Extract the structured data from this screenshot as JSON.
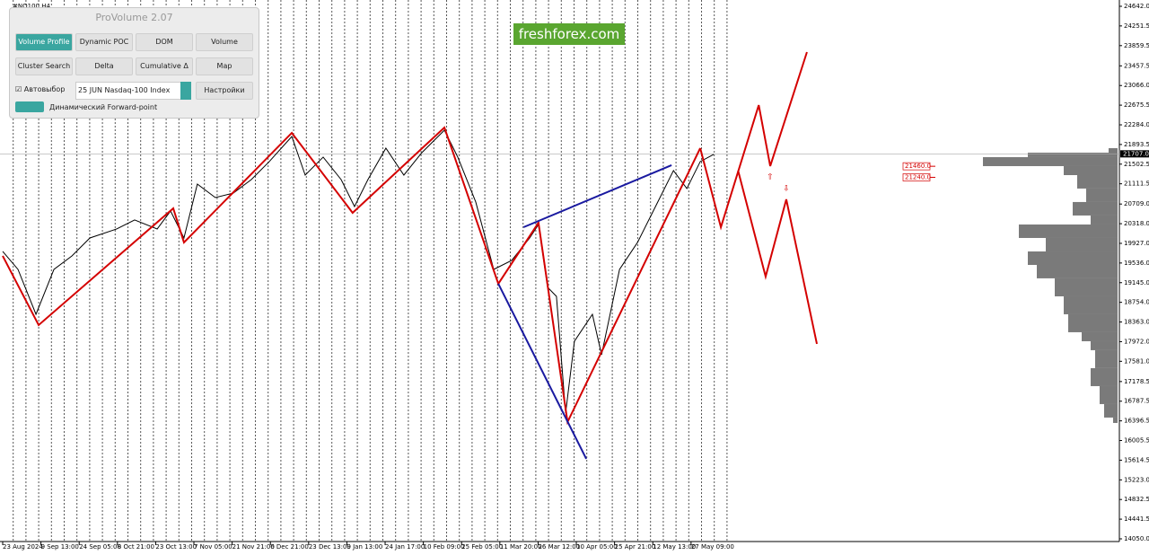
{
  "window": {
    "symbol": "#NQ100,H4"
  },
  "panel": {
    "title": "ProVolume 2.07",
    "buttons": [
      "Volume Profile",
      "Dynamic POC",
      "DOM",
      "Volume",
      "Cluster Search",
      "Delta",
      "Cumulative Δ",
      "Map"
    ],
    "auto_select": "Автовыбор",
    "instrument": "25 JUN Nasdaq-100 Index",
    "settings": "Настройки",
    "forward_point": "Динамический Forward-point"
  },
  "watermark": "freshforex.com",
  "chart_data": {
    "type": "line",
    "xlim": [
      0,
      29.2
    ],
    "xticks": [
      {
        "value": 0,
        "label": "23 Aug 2024"
      },
      {
        "value": 1,
        "label": "9 Sep 13:00"
      },
      {
        "value": 2,
        "label": "24 Sep 05:00"
      },
      {
        "value": 3,
        "label": "8 Oct 21:00"
      },
      {
        "value": 4,
        "label": "23 Oct 13:00"
      },
      {
        "value": 5,
        "label": "7 Nov 05:00"
      },
      {
        "value": 6,
        "label": "21 Nov 21:00"
      },
      {
        "value": 7,
        "label": "6 Dec 21:00"
      },
      {
        "value": 8,
        "label": "23 Dec 13:00"
      },
      {
        "value": 9,
        "label": "9 Jan 13:00"
      },
      {
        "value": 10,
        "label": "24 Jan 17:00"
      },
      {
        "value": 11,
        "label": "10 Feb 09:00"
      },
      {
        "value": 12,
        "label": "25 Feb 05:00"
      },
      {
        "value": 13,
        "label": "11 Mar 20:00"
      },
      {
        "value": 14,
        "label": "26 Mar 12:00"
      },
      {
        "value": 15,
        "label": "10 Apr 05:00"
      },
      {
        "value": 16,
        "label": "25 Apr 21:00"
      },
      {
        "value": 17,
        "label": "12 May 13:00"
      },
      {
        "value": 18,
        "label": "27 May 09:00"
      }
    ],
    "ylim": [
      14050,
      24642
    ],
    "yticks": [
      {
        "value": 24642,
        "label": "24642.0"
      },
      24251.5,
      23859.5,
      23457.5,
      {
        "value": 23066,
        "label": "23066.0"
      },
      22675.5,
      {
        "value": 22284,
        "label": "22284.0"
      },
      21893.5,
      21502.5,
      21111.5,
      {
        "value": 20709,
        "label": "20709.0"
      },
      {
        "value": 20318,
        "label": "20318.0"
      },
      {
        "value": 19927,
        "label": "19927.0"
      },
      {
        "value": 19536,
        "label": "19536.0"
      },
      {
        "value": 19145,
        "label": "19145.0"
      },
      {
        "value": 18754,
        "label": "18754.0"
      },
      {
        "value": 18363,
        "label": "18363.0"
      },
      {
        "value": 17972,
        "label": "17972.0"
      },
      {
        "value": 17581,
        "label": "17581.0"
      },
      17178.5,
      16787.5,
      16396.5,
      16005.5,
      15614.5,
      {
        "value": 15223,
        "label": "15223.0"
      },
      14832.5,
      14441.5,
      {
        "value": 14050,
        "label": "14050.0"
      }
    ],
    "series": [
      {
        "color": "#000000",
        "x": [
          0,
          0.4,
          0.87,
          1.34,
          1.81,
          2.28,
          2.98,
          3.45,
          4.04,
          4.39,
          4.74,
          5.09,
          5.56,
          6.03,
          6.5,
          6.97,
          7.56,
          7.91,
          8.38,
          8.85,
          9.2,
          9.55,
          10.02,
          10.49,
          10.96,
          11.55,
          11.9,
          12.37,
          12.84,
          13.31,
          13.78,
          14.01,
          14.25,
          14.48,
          14.72,
          14.95,
          15.42,
          15.66,
          16.13,
          16.6,
          17.07,
          17.54,
          17.89,
          18.24,
          18.59
        ],
        "values": [
          19766,
          19409,
          18516,
          19409,
          19677,
          20034,
          20213,
          20392,
          20213,
          20570,
          20034,
          21106,
          20838,
          20927,
          21195,
          21553,
          22052,
          21284,
          21642,
          21195,
          20659,
          21195,
          21820,
          21284,
          21731,
          22177,
          21642,
          20749,
          19409,
          19588,
          20034,
          20302,
          19052,
          18873,
          16551,
          17980,
          18516,
          17712,
          19409,
          19945,
          20659,
          21374,
          21017,
          21553,
          21695
        ]
      },
      {
        "color": "#d40000",
        "x": [
          0,
          0.94,
          4.46,
          4.74,
          7.56,
          9.15,
          11.55,
          12.96,
          14.01,
          14.77,
          18.24
        ],
        "values": [
          19677,
          18302,
          20623,
          19945,
          22124,
          20534,
          22231,
          19123,
          20338,
          16373,
          21820
        ]
      },
      {
        "color": "#d40000",
        "x": [
          18.24,
          18.78,
          19.77,
          20.07,
          21.03
        ],
        "values": [
          21820,
          20248,
          22677,
          21463,
          23731
        ]
      },
      {
        "color": "#d40000",
        "x": [
          19.23,
          19.95,
          20.49,
          21.29
        ],
        "values": [
          21374,
          19266,
          20802,
          17927
        ]
      },
      {
        "color": "#1a1aa0",
        "x": [
          13.62,
          17.49
        ],
        "values": [
          20248,
          21481
        ]
      },
      {
        "color": "#1a1aa0",
        "x": [
          12.96,
          15.26
        ],
        "values": [
          19123,
          15641
        ]
      }
    ],
    "current_price": {
      "value": 21707,
      "label": "21707.0"
    },
    "levels": [
      {
        "value": 21460,
        "label": "21460.0"
      },
      {
        "value": 21240,
        "label": "21240.0"
      }
    ],
    "volume_profile": {
      "color": "#7a7a7a",
      "prices": [
        21820,
        21731,
        21642,
        21463,
        21284,
        21017,
        20749,
        20481,
        20302,
        20034,
        19766,
        19498,
        19231,
        18873,
        18516,
        18159,
        17980,
        17802,
        17445,
        17087,
        16730,
        16462
      ],
      "volumes": [
        10,
        100,
        150,
        60,
        45,
        35,
        50,
        30,
        110,
        80,
        100,
        90,
        70,
        60,
        55,
        40,
        30,
        25,
        30,
        20,
        15,
        5
      ]
    }
  }
}
